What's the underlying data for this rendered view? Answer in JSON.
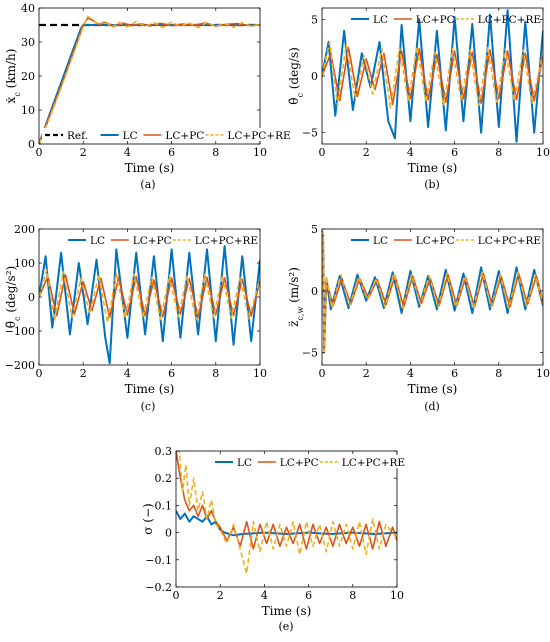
{
  "colors": {
    "ref": "#000000",
    "lc": "#0072bd",
    "lcpc": "#d95319",
    "lcpcre": "#edb120"
  },
  "chart_data": [
    {
      "id": "a",
      "type": "line",
      "panel_label": "(a)",
      "xlabel": "Time (s)",
      "ylabel": "ẋ_c (km/h)",
      "ylabel_parts": [
        "ẋ",
        "c",
        " (km/h)"
      ],
      "xlim": [
        0,
        10
      ],
      "ylim": [
        0,
        40
      ],
      "xticks": [
        0,
        2,
        4,
        6,
        8,
        10
      ],
      "yticks": [
        0,
        10,
        20,
        30,
        40
      ],
      "grid": false,
      "legend_position": "bottom",
      "series": [
        {
          "name": "Ref.",
          "x": [
            0,
            10
          ],
          "y": [
            35,
            35
          ]
        },
        {
          "name": "LC",
          "x": [
            0,
            0.5,
            1.0,
            1.5,
            1.9,
            2.0,
            3,
            4,
            5,
            6,
            7,
            8,
            9,
            10
          ],
          "y": [
            0,
            9,
            18,
            27,
            34,
            35,
            35,
            35,
            35,
            35,
            35,
            35,
            35,
            35
          ]
        },
        {
          "name": "LC+PC",
          "x": [
            0,
            0.5,
            1.0,
            1.5,
            2.0,
            2.2,
            2.4,
            2.7,
            3.0,
            3.4,
            3.8,
            4.2,
            4.6,
            5.0,
            5.5,
            6.0,
            6.5,
            7.0,
            7.5,
            8.0,
            8.5,
            9.0,
            9.5,
            10
          ],
          "y": [
            0,
            8.5,
            17,
            26,
            35,
            37,
            36.5,
            35.2,
            35.8,
            34.6,
            35.6,
            34.8,
            35.4,
            34.7,
            35.5,
            34.8,
            35.3,
            34.9,
            35.6,
            34.7,
            35.2,
            35.4,
            34.8,
            35.1
          ]
        },
        {
          "name": "LC+PC+RE",
          "x": [
            0,
            0.5,
            1.0,
            1.5,
            2.0,
            2.2,
            2.4,
            2.7,
            3.0,
            3.3,
            3.6,
            4.0,
            4.4,
            4.8,
            5.2,
            5.6,
            6.0,
            6.4,
            6.8,
            7.2,
            7.6,
            8.0,
            8.4,
            8.8,
            9.2,
            9.6,
            10
          ],
          "y": [
            0,
            8,
            16.5,
            25.5,
            34.5,
            37.5,
            36.8,
            35,
            36.2,
            34.2,
            35.8,
            34.4,
            36,
            34.6,
            35.7,
            34.3,
            35.9,
            34.5,
            35.6,
            34.2,
            35.8,
            34.6,
            35.4,
            34.3,
            35.7,
            34.6,
            35.2
          ]
        }
      ]
    },
    {
      "id": "b",
      "type": "line",
      "panel_label": "(b)",
      "xlabel": "Time (s)",
      "ylabel": "θ̇_c (deg/s)",
      "ylabel_parts": [
        "θ̇",
        "c",
        " (deg/s)"
      ],
      "xlim": [
        0,
        10
      ],
      "ylim": [
        -6,
        6
      ],
      "xticks": [
        0,
        2,
        4,
        6,
        8,
        10
      ],
      "yticks": [
        -5,
        0,
        5
      ],
      "grid": false,
      "legend_position": "top",
      "series": [
        {
          "name": "LC",
          "x": [
            0,
            0.3,
            0.6,
            1.0,
            1.4,
            1.8,
            2.2,
            2.6,
            3.0,
            3.3,
            3.6,
            4.0,
            4.4,
            4.8,
            5.2,
            5.6,
            6.0,
            6.4,
            6.8,
            7.2,
            7.6,
            8.0,
            8.4,
            8.8,
            9.2,
            9.6,
            10
          ],
          "y": [
            0,
            3,
            -3.5,
            4,
            -3,
            2,
            -1,
            3,
            -4,
            -5.5,
            4.5,
            -4,
            5,
            -4.5,
            4,
            -4.8,
            5.2,
            -4,
            4.6,
            -5,
            5.4,
            -4.5,
            5.8,
            -5.8,
            4.8,
            -5,
            4
          ]
        },
        {
          "name": "LC+PC",
          "x": [
            0,
            0.4,
            0.8,
            1.2,
            1.6,
            2.0,
            2.4,
            2.8,
            3.2,
            3.6,
            4.0,
            4.4,
            4.8,
            5.2,
            5.6,
            6.0,
            6.4,
            6.8,
            7.2,
            7.6,
            8.0,
            8.4,
            8.8,
            9.2,
            9.6,
            10
          ],
          "y": [
            0,
            2,
            -2.2,
            2.5,
            -1.8,
            1.5,
            -1.2,
            2,
            -2.5,
            2.2,
            -2,
            2.4,
            -2.1,
            1.9,
            -2.3,
            2.2,
            -2,
            2.1,
            -2.4,
            2.3,
            -2,
            2.2,
            -2.1,
            2,
            -2.2,
            1.8
          ]
        },
        {
          "name": "LC+PC+RE",
          "x": [
            0,
            0.35,
            0.7,
            1.1,
            1.5,
            1.9,
            2.3,
            2.7,
            3.1,
            3.5,
            3.9,
            4.3,
            4.7,
            5.1,
            5.5,
            5.9,
            6.3,
            6.7,
            7.1,
            7.5,
            7.9,
            8.3,
            8.7,
            9.1,
            9.5,
            10
          ],
          "y": [
            0,
            3,
            -2.6,
            2.8,
            -2,
            1.8,
            -1.6,
            2.4,
            -2.8,
            2.5,
            -2.2,
            2.6,
            -2.3,
            2.1,
            -2.6,
            2.4,
            -2.2,
            2.3,
            -2.6,
            2.5,
            -2.3,
            2.4,
            -2.2,
            2.3,
            -2.4,
            2
          ]
        }
      ]
    },
    {
      "id": "c",
      "type": "line",
      "panel_label": "(c)",
      "xlabel": "Time (s)",
      "ylabel": "θ̈_c (deg/s²)",
      "ylabel_parts": [
        "θ̈",
        "c",
        " (deg/s²)"
      ],
      "xlim": [
        0,
        10
      ],
      "ylim": [
        -200,
        200
      ],
      "xticks": [
        0,
        2,
        4,
        6,
        8,
        10
      ],
      "yticks": [
        -200,
        -100,
        0,
        100,
        200
      ],
      "grid": false,
      "legend_position": "top",
      "series": [
        {
          "name": "LC",
          "x": [
            0,
            0.3,
            0.6,
            1.0,
            1.4,
            1.8,
            2.2,
            2.6,
            3.0,
            3.2,
            3.5,
            4.0,
            4.4,
            4.8,
            5.2,
            5.6,
            6.0,
            6.4,
            6.8,
            7.2,
            7.6,
            8.0,
            8.4,
            8.8,
            9.2,
            9.6,
            10
          ],
          "y": [
            0,
            120,
            -90,
            130,
            -110,
            100,
            -80,
            110,
            -120,
            -195,
            140,
            -120,
            130,
            -110,
            120,
            -130,
            140,
            -120,
            130,
            -110,
            140,
            -130,
            150,
            -140,
            120,
            -130,
            110
          ]
        },
        {
          "name": "LC+PC",
          "x": [
            0,
            0.4,
            0.8,
            1.2,
            1.6,
            2.0,
            2.4,
            2.8,
            3.2,
            3.6,
            4.0,
            4.4,
            4.8,
            5.2,
            5.6,
            6.0,
            6.4,
            6.8,
            7.2,
            7.6,
            8.0,
            8.4,
            8.8,
            9.2,
            9.6,
            10
          ],
          "y": [
            0,
            60,
            -55,
            65,
            -50,
            45,
            -40,
            55,
            -60,
            58,
            -52,
            60,
            -55,
            50,
            -58,
            56,
            -50,
            54,
            -60,
            58,
            -52,
            56,
            -54,
            52,
            -56,
            48
          ]
        },
        {
          "name": "LC+PC+RE",
          "x": [
            0,
            0.35,
            0.7,
            1.1,
            1.5,
            1.9,
            2.3,
            2.7,
            3.1,
            3.5,
            3.9,
            4.3,
            4.7,
            5.1,
            5.5,
            5.9,
            6.3,
            6.7,
            7.1,
            7.5,
            7.9,
            8.3,
            8.7,
            9.1,
            9.5,
            10
          ],
          "y": [
            0,
            80,
            -70,
            75,
            -60,
            55,
            -50,
            65,
            -75,
            70,
            -62,
            68,
            -60,
            58,
            -66,
            64,
            -58,
            62,
            -68,
            66,
            -60,
            64,
            -62,
            60,
            -64,
            55
          ]
        }
      ]
    },
    {
      "id": "d",
      "type": "line",
      "panel_label": "(d)",
      "xlabel": "Time (s)",
      "ylabel": "z̈_c,w (m/s²)",
      "ylabel_parts": [
        "z̈",
        "c,w",
        " (m/s²)"
      ],
      "xlim": [
        0,
        10
      ],
      "ylim": [
        -6,
        5
      ],
      "xticks": [
        0,
        2,
        4,
        6,
        8,
        10
      ],
      "yticks": [
        -5,
        0,
        5
      ],
      "grid": false,
      "legend_position": "top",
      "series": [
        {
          "name": "LC",
          "x": [
            0,
            0.05,
            0.1,
            0.2,
            0.4,
            0.8,
            1.2,
            1.6,
            2.0,
            2.4,
            2.8,
            3.2,
            3.6,
            4.0,
            4.4,
            4.8,
            5.2,
            5.6,
            6.0,
            6.4,
            6.8,
            7.2,
            7.6,
            8.0,
            8.4,
            8.8,
            9.2,
            9.6,
            10
          ],
          "y": [
            0,
            4.5,
            -4.8,
            1,
            -1.5,
            1.2,
            -1.4,
            1.3,
            -0.8,
            1.1,
            -1.4,
            1.5,
            -1.8,
            1.6,
            -1.3,
            1.2,
            -1.5,
            1.7,
            -1.6,
            1.4,
            -1.8,
            1.9,
            -1.5,
            1.6,
            -1.8,
            1.9,
            -1.5,
            1.7,
            -1.2
          ]
        },
        {
          "name": "LC+PC",
          "x": [
            0,
            0.05,
            0.1,
            0.2,
            0.5,
            0.9,
            1.3,
            1.7,
            2.1,
            2.5,
            2.9,
            3.3,
            3.7,
            4.1,
            4.5,
            4.9,
            5.3,
            5.7,
            6.1,
            6.5,
            6.9,
            7.3,
            7.7,
            8.1,
            8.5,
            8.9,
            9.3,
            9.7,
            10
          ],
          "y": [
            0,
            4.2,
            -4.5,
            0.8,
            -1.2,
            1,
            -1.1,
            1,
            -0.6,
            0.9,
            -1.1,
            1.2,
            -1.3,
            1.2,
            -1,
            1,
            -1.2,
            1.3,
            -1.2,
            1.1,
            -1.3,
            1.4,
            -1.2,
            1.2,
            -1.3,
            1.4,
            -1.1,
            1.2,
            -0.9
          ]
        },
        {
          "name": "LC+PC+RE",
          "x": [
            0,
            0.05,
            0.1,
            0.2,
            0.45,
            0.85,
            1.25,
            1.65,
            2.05,
            2.45,
            2.85,
            3.25,
            3.65,
            4.05,
            4.45,
            4.85,
            5.25,
            5.65,
            6.05,
            6.45,
            6.85,
            7.25,
            7.65,
            8.05,
            8.45,
            8.85,
            9.25,
            9.65,
            10
          ],
          "y": [
            0,
            4.8,
            -5.2,
            1.2,
            -1.4,
            1.3,
            -1.2,
            1.1,
            -0.7,
            1,
            -1.3,
            1.4,
            -1.4,
            1.3,
            -1.1,
            1.2,
            -1.3,
            1.4,
            -1.3,
            1.2,
            -1.4,
            1.5,
            -1.3,
            1.3,
            -1.4,
            1.5,
            -1.2,
            1.3,
            -1
          ]
        }
      ]
    },
    {
      "id": "e",
      "type": "line",
      "panel_label": "(e)",
      "xlabel": "Time (s)",
      "ylabel": "σ (−)",
      "ylabel_parts": [
        "σ",
        "",
        " (−)"
      ],
      "xlim": [
        0,
        10
      ],
      "ylim": [
        -0.2,
        0.3
      ],
      "xticks": [
        0,
        2,
        4,
        6,
        8,
        10
      ],
      "yticks": [
        -0.2,
        -0.1,
        0,
        0.1,
        0.2,
        0.3
      ],
      "grid": false,
      "legend_position": "top",
      "series": [
        {
          "name": "LC",
          "x": [
            0,
            0.2,
            0.4,
            0.6,
            0.8,
            1.0,
            1.2,
            1.4,
            1.6,
            1.8,
            2.0,
            2.2,
            2.6,
            3.0,
            4,
            5,
            6,
            7,
            8,
            9,
            10
          ],
          "y": [
            0.08,
            0.05,
            0.07,
            0.04,
            0.06,
            0.05,
            0.04,
            0.06,
            0.03,
            0.04,
            0.01,
            0.0,
            -0.01,
            -0.005,
            0.0,
            -0.005,
            0.0,
            -0.005,
            0.0,
            -0.005,
            0.0
          ]
        },
        {
          "name": "LC+PC",
          "x": [
            0,
            0.2,
            0.4,
            0.6,
            0.8,
            1.0,
            1.2,
            1.4,
            1.6,
            1.8,
            2.0,
            2.3,
            2.6,
            2.9,
            3.2,
            3.5,
            3.8,
            4.1,
            4.4,
            4.7,
            5.0,
            5.3,
            5.6,
            5.9,
            6.2,
            6.5,
            6.8,
            7.1,
            7.4,
            7.7,
            8.0,
            8.3,
            8.6,
            8.9,
            9.2,
            9.5,
            9.8,
            10
          ],
          "y": [
            0.3,
            0.2,
            0.12,
            0.08,
            0.1,
            0.06,
            0.1,
            0.05,
            0.08,
            0.04,
            0.02,
            -0.03,
            0.02,
            -0.05,
            0.04,
            -0.06,
            0.03,
            -0.04,
            0.03,
            -0.05,
            0.02,
            -0.04,
            0.03,
            -0.06,
            0.03,
            -0.04,
            0.02,
            -0.05,
            0.03,
            -0.04,
            0.02,
            -0.05,
            0.03,
            -0.06,
            0.04,
            -0.05,
            0.02,
            -0.03
          ]
        },
        {
          "name": "LC+PC+RE",
          "x": [
            0,
            0.15,
            0.3,
            0.45,
            0.6,
            0.8,
            1.0,
            1.2,
            1.4,
            1.6,
            1.8,
            2.0,
            2.3,
            2.6,
            2.9,
            3.2,
            3.5,
            3.8,
            4.1,
            4.4,
            4.7,
            5.0,
            5.3,
            5.6,
            5.9,
            6.2,
            6.5,
            6.8,
            7.1,
            7.4,
            7.7,
            8.0,
            8.3,
            8.6,
            8.9,
            9.2,
            9.5,
            9.8,
            10
          ],
          "y": [
            0.3,
            0.3,
            0.15,
            0.25,
            0.1,
            0.2,
            0.08,
            0.15,
            0.05,
            0.12,
            0.03,
            0.01,
            -0.04,
            0.03,
            -0.06,
            -0.15,
            0.04,
            -0.07,
            0.04,
            -0.06,
            0.03,
            -0.05,
            0.04,
            -0.08,
            0.04,
            -0.05,
            0.03,
            -0.07,
            0.04,
            -0.05,
            0.03,
            -0.06,
            0.04,
            -0.08,
            0.05,
            -0.06,
            0.03,
            0.0,
            -0.02
          ]
        }
      ]
    }
  ]
}
